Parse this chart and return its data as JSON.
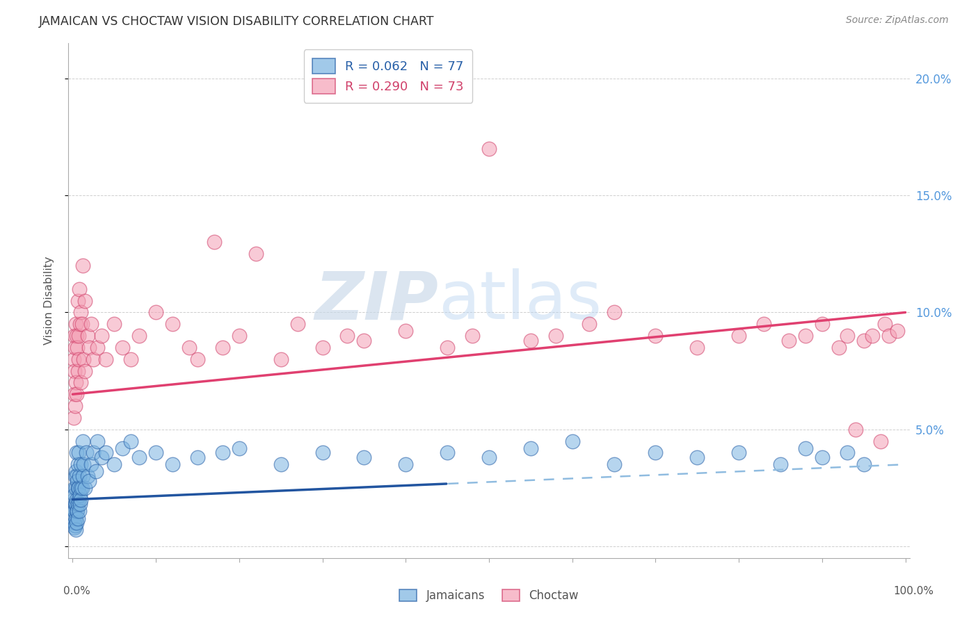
{
  "title": "JAMAICAN VS CHOCTAW VISION DISABILITY CORRELATION CHART",
  "source": "Source: ZipAtlas.com",
  "ylabel": "Vision Disability",
  "watermark_zip": "ZIP",
  "watermark_atlas": "atlas",
  "jamaican_color": "#7ab3e0",
  "jamaican_edge": "#2860a8",
  "choctaw_color": "#f4a0b5",
  "choctaw_edge": "#d0406a",
  "blue_line_solid": "#2255a0",
  "blue_line_dash": "#90bce0",
  "pink_line": "#e04070",
  "background": "#ffffff",
  "grid_color": "#bbbbbb",
  "right_tick_color": "#5599dd",
  "jamaicans_x": [
    0.1,
    0.15,
    0.15,
    0.2,
    0.2,
    0.2,
    0.25,
    0.25,
    0.3,
    0.3,
    0.3,
    0.35,
    0.35,
    0.4,
    0.4,
    0.4,
    0.45,
    0.5,
    0.5,
    0.5,
    0.5,
    0.55,
    0.55,
    0.6,
    0.6,
    0.65,
    0.65,
    0.7,
    0.7,
    0.75,
    0.8,
    0.8,
    0.85,
    0.9,
    0.95,
    1.0,
    1.0,
    1.1,
    1.2,
    1.2,
    1.3,
    1.5,
    1.6,
    1.8,
    2.0,
    2.2,
    2.5,
    2.8,
    3.0,
    3.5,
    4.0,
    5.0,
    6.0,
    7.0,
    8.0,
    10.0,
    12.0,
    15.0,
    18.0,
    20.0,
    25.0,
    30.0,
    35.0,
    40.0,
    45.0,
    50.0,
    55.0,
    60.0,
    65.0,
    70.0,
    75.0,
    80.0,
    85.0,
    88.0,
    90.0,
    93.0,
    95.0
  ],
  "jamaicans_y": [
    1.5,
    1.2,
    2.0,
    0.8,
    1.5,
    2.5,
    1.0,
    2.2,
    0.9,
    1.8,
    3.0,
    1.2,
    2.5,
    0.7,
    1.8,
    3.2,
    1.5,
    1.0,
    2.0,
    3.0,
    4.0,
    1.5,
    2.8,
    1.2,
    2.5,
    1.8,
    3.5,
    2.0,
    4.0,
    2.5,
    1.5,
    3.0,
    2.2,
    1.8,
    2.5,
    2.0,
    3.5,
    2.5,
    3.0,
    4.5,
    3.5,
    2.5,
    4.0,
    3.0,
    2.8,
    3.5,
    4.0,
    3.2,
    4.5,
    3.8,
    4.0,
    3.5,
    4.2,
    4.5,
    3.8,
    4.0,
    3.5,
    3.8,
    4.0,
    4.2,
    3.5,
    4.0,
    3.8,
    3.5,
    4.0,
    3.8,
    4.2,
    4.5,
    3.5,
    4.0,
    3.8,
    4.0,
    3.5,
    4.2,
    3.8,
    4.0,
    3.5
  ],
  "choctaw_x": [
    0.1,
    0.15,
    0.2,
    0.2,
    0.25,
    0.3,
    0.3,
    0.35,
    0.4,
    0.5,
    0.5,
    0.55,
    0.6,
    0.65,
    0.7,
    0.75,
    0.8,
    0.9,
    1.0,
    1.0,
    1.1,
    1.2,
    1.3,
    1.5,
    1.5,
    1.8,
    2.0,
    2.2,
    2.5,
    3.0,
    3.5,
    4.0,
    5.0,
    6.0,
    7.0,
    8.0,
    10.0,
    12.0,
    14.0,
    15.0,
    17.0,
    18.0,
    20.0,
    22.0,
    25.0,
    27.0,
    30.0,
    33.0,
    35.0,
    40.0,
    45.0,
    48.0,
    50.0,
    55.0,
    58.0,
    62.0,
    65.0,
    70.0,
    75.0,
    80.0,
    83.0,
    86.0,
    88.0,
    90.0,
    92.0,
    93.0,
    94.0,
    95.0,
    96.0,
    97.0,
    97.5,
    98.0,
    99.0
  ],
  "choctaw_y": [
    5.5,
    8.0,
    6.5,
    9.0,
    7.5,
    6.0,
    8.5,
    9.5,
    7.0,
    6.5,
    9.0,
    8.5,
    10.5,
    7.5,
    9.0,
    8.0,
    11.0,
    9.5,
    7.0,
    10.0,
    9.5,
    12.0,
    8.0,
    7.5,
    10.5,
    9.0,
    8.5,
    9.5,
    8.0,
    8.5,
    9.0,
    8.0,
    9.5,
    8.5,
    8.0,
    9.0,
    10.0,
    9.5,
    8.5,
    8.0,
    13.0,
    8.5,
    9.0,
    12.5,
    8.0,
    9.5,
    8.5,
    9.0,
    8.8,
    9.2,
    8.5,
    9.0,
    17.0,
    8.8,
    9.0,
    9.5,
    10.0,
    9.0,
    8.5,
    9.0,
    9.5,
    8.8,
    9.0,
    9.5,
    8.5,
    9.0,
    5.0,
    8.8,
    9.0,
    4.5,
    9.5,
    9.0,
    9.2
  ],
  "blue_solid_xlim": 0.45,
  "ytick_vals": [
    0.0,
    0.05,
    0.1,
    0.15,
    0.2
  ],
  "ytick_labels": [
    "",
    "5.0%",
    "10.0%",
    "15.0%",
    "20.0%"
  ]
}
